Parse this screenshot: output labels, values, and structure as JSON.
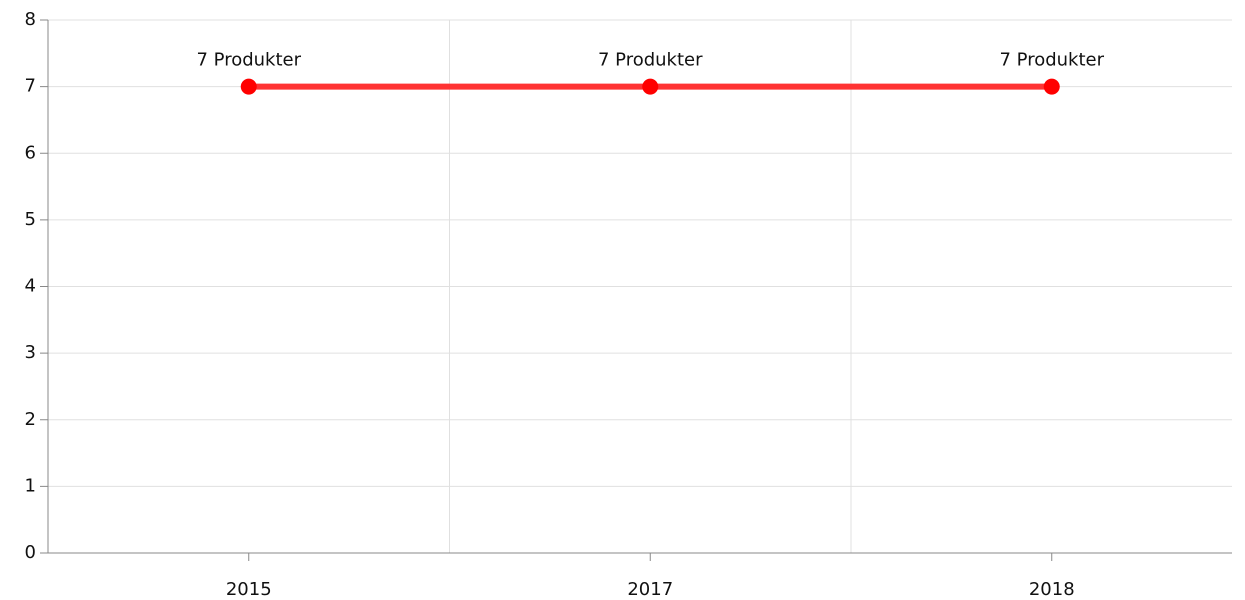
{
  "chart_data": {
    "type": "line",
    "categories": [
      "2015",
      "2017",
      "2018"
    ],
    "series": [
      {
        "color": "#ff3333",
        "marker_color": "#ff0000",
        "values": [
          7,
          7,
          7
        ],
        "value_labels": [
          "7 Produkter",
          "7 Produkter",
          "7 Produkter"
        ]
      }
    ],
    "ylim": [
      0,
      8
    ],
    "yticks": [
      0,
      1,
      2,
      3,
      4,
      5,
      6,
      7,
      8
    ],
    "grid": true
  }
}
